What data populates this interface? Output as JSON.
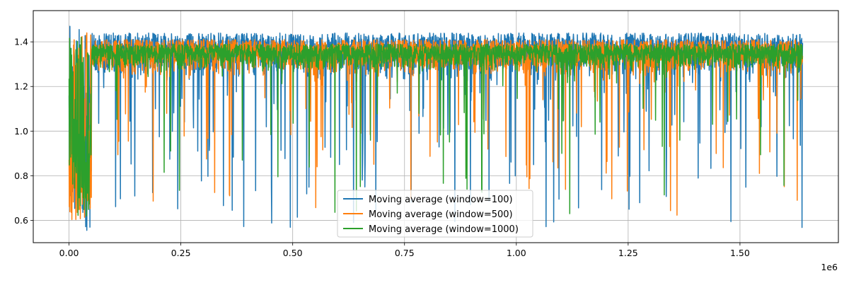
{
  "chart_data": {
    "type": "line",
    "title": "",
    "xlabel": "",
    "ylabel": "",
    "x_offset_label": "1e6",
    "xlim": [
      -0.08,
      1.72
    ],
    "ylim": [
      0.5,
      1.54
    ],
    "x_ticks": [
      0.0,
      0.25,
      0.5,
      0.75,
      1.0,
      1.25,
      1.5
    ],
    "x_tick_labels": [
      "0.00",
      "0.25",
      "0.50",
      "0.75",
      "1.00",
      "1.25",
      "1.50"
    ],
    "y_ticks": [
      0.6,
      0.8,
      1.0,
      1.2,
      1.4
    ],
    "y_tick_labels": [
      "0.6",
      "0.8",
      "1.0",
      "1.2",
      "1.4"
    ],
    "x_range": [
      0.0,
      1.64
    ],
    "grid": true,
    "legend_position": "lower-center",
    "series": [
      {
        "name": "Moving average (window=100)",
        "color": "#1f77b4",
        "upper": 1.44,
        "typical": 1.32,
        "min": 0.55,
        "dip_frequency": "high"
      },
      {
        "name": "Moving average (window=500)",
        "color": "#ff7f0e",
        "upper": 1.41,
        "typical": 1.31,
        "min": 0.6,
        "dip_frequency": "medium"
      },
      {
        "name": "Moving average (window=1000)",
        "color": "#2ca02c",
        "upper": 1.39,
        "typical": 1.3,
        "min": 0.62,
        "dip_frequency": "low"
      }
    ]
  }
}
